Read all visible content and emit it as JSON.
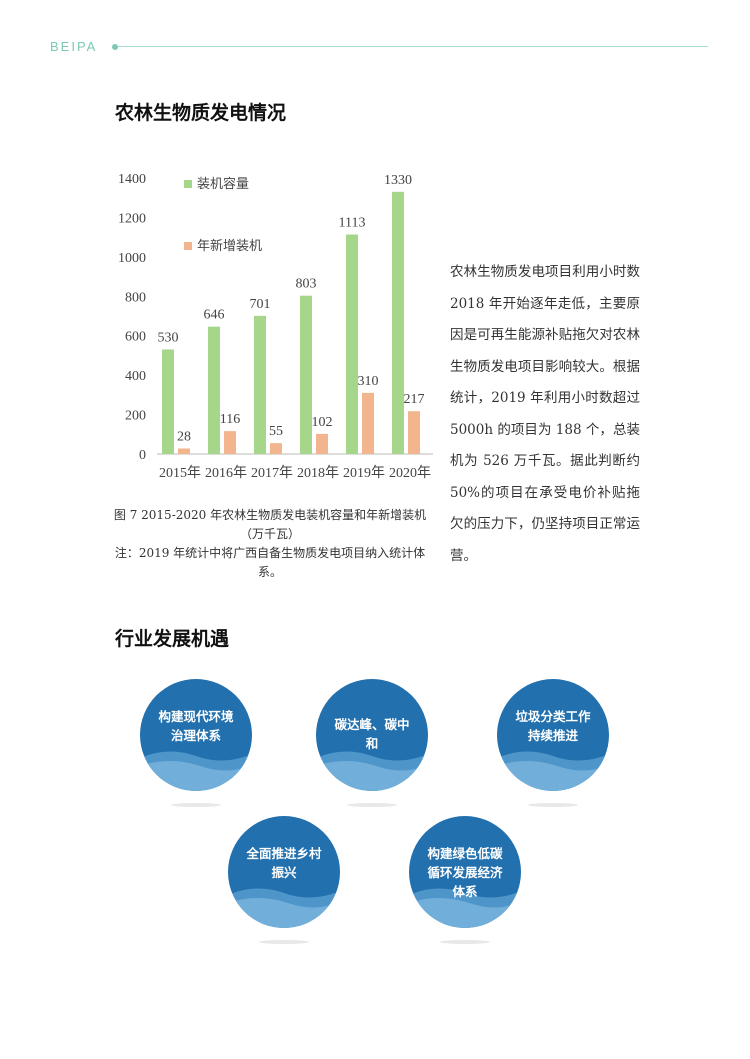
{
  "header": {
    "brand": "BEIPA"
  },
  "section1": {
    "title": "农林生物质发电情况"
  },
  "chart_data": {
    "type": "bar",
    "categories": [
      "2015年",
      "2016年",
      "2017年",
      "2018年",
      "2019年",
      "2020年"
    ],
    "series": [
      {
        "name": "装机容量",
        "values": [
          530,
          646,
          701,
          803,
          1113,
          1330
        ],
        "color": "#a6d68a"
      },
      {
        "name": "年新增装机",
        "values": [
          28,
          116,
          55,
          102,
          310,
          217
        ],
        "color": "#f2b58e"
      }
    ],
    "yticks": [
      0,
      200,
      400,
      600,
      800,
      1000,
      1200,
      1400
    ],
    "ylim": [
      0,
      1400
    ],
    "grid": false,
    "legend": "top-left"
  },
  "caption": {
    "line1": "图 7 2015-2020 年农林生物质发电装机容量和年新增装机（万千瓦）",
    "line2": "注：2019 年统计中将广西自备生物质发电项目纳入统计体系。"
  },
  "body_text": "农林生物质发电项目利用小时数 2018 年开始逐年走低，主要原因是可再生能源补贴拖欠对农林生物质发电项目影响较大。根据统计，2019 年利用小时数超过 5000h 的项目为 188 个，总装机为 526 万千瓦。据此判断约 50%的项目在承受电价补贴拖欠的压力下，仍坚持项目正常运营。",
  "section2": {
    "title": "行业发展机遇",
    "items": [
      "构建现代环境治理体系",
      "碳达峰、碳中和",
      "垃圾分类工作持续推进",
      "全面推进乡村振兴",
      "构建绿色低碳循环发展经济体系"
    ]
  }
}
